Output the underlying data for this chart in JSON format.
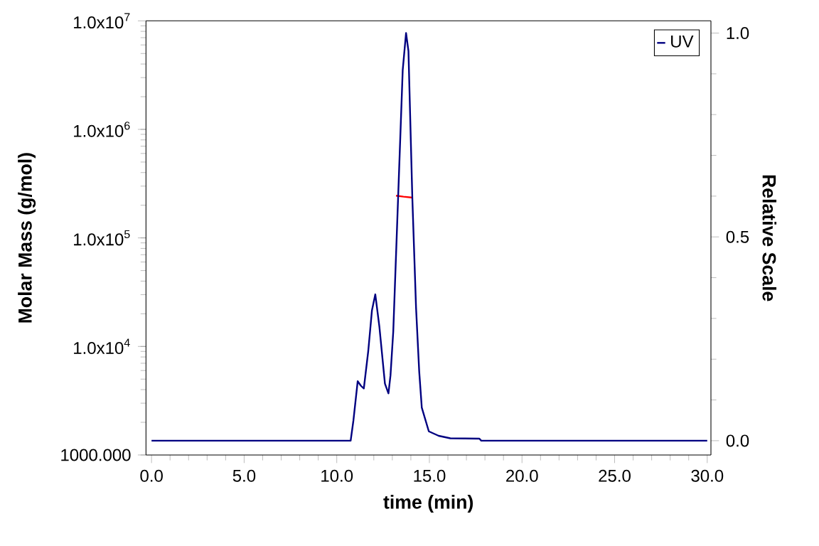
{
  "chart_data": {
    "type": "line",
    "xlabel": "time (min)",
    "ylabel": "Molar Mass (g/mol)",
    "y2label": "Relative Scale",
    "xlim": [
      -0.3,
      30.2
    ],
    "xticks": [
      {
        "value": 0,
        "label": "0.0"
      },
      {
        "value": 5,
        "label": "5.0"
      },
      {
        "value": 10,
        "label": "10.0"
      },
      {
        "value": 15,
        "label": "15.0"
      },
      {
        "value": 20,
        "label": "20.0"
      },
      {
        "value": 25,
        "label": "25.0"
      },
      {
        "value": 30,
        "label": "30.0"
      }
    ],
    "ylim": [
      1000,
      10000000
    ],
    "yticks": [
      {
        "value": 1000,
        "label": "1000.000"
      },
      {
        "value": 10000,
        "label": "1.0x10$^{4}$"
      },
      {
        "value": 100000,
        "label": "1.0x10$^{5}$"
      },
      {
        "value": 1000000,
        "label": "1.0x10$^{6}$"
      },
      {
        "value": 10000000,
        "label": "1.0x10$^{7}$"
      }
    ],
    "y2lim": [
      -0.035,
      1.03
    ],
    "y2ticks": [
      {
        "value": 0,
        "label": "0.0"
      },
      {
        "value": 0.5,
        "label": "0.5"
      },
      {
        "value": 1,
        "label": "1.0"
      }
    ],
    "log": "y",
    "legend": "top right",
    "series": [
      {
        "name": "UV",
        "color": "#000080",
        "axis": "y2",
        "x": [
          0,
          10.75,
          10.9,
          11.13,
          11.3,
          11.46,
          11.7,
          11.9,
          12.08,
          12.3,
          12.6,
          12.79,
          12.9,
          13.05,
          13.31,
          13.56,
          13.74,
          13.87,
          14.08,
          14.28,
          14.45,
          14.59,
          14.97,
          15.5,
          16.13,
          17.7,
          17.8,
          30
        ],
        "values": [
          0,
          0,
          0.05,
          0.146,
          0.135,
          0.128,
          0.22,
          0.32,
          0.359,
          0.28,
          0.14,
          0.116,
          0.16,
          0.268,
          0.594,
          0.909,
          1.0,
          0.956,
          0.594,
          0.326,
          0.17,
          0.081,
          0.023,
          0.012,
          0.006,
          0.005,
          0,
          0
        ]
      },
      {
        "color": "#ff0000",
        "x": [
          13.2,
          13.6,
          14.1
        ],
        "values": [
          245000,
          240000,
          235000
        ]
      }
    ]
  }
}
